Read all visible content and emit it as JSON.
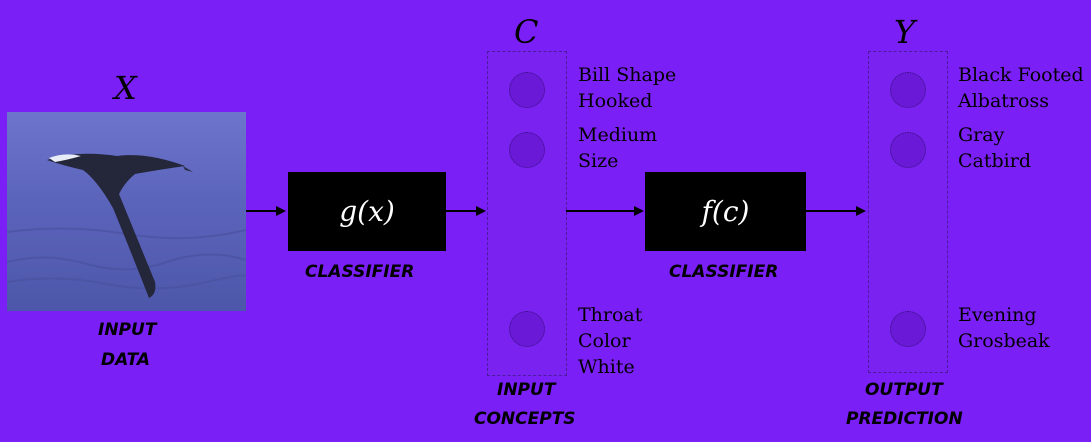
{
  "input": {
    "symbol": "X",
    "caption_line1": "INPUT",
    "caption_line2": "DATA"
  },
  "g_box": {
    "label": "g(x)",
    "caption": "CLASSIFIER"
  },
  "concepts": {
    "symbol": "C",
    "caption_line1": "INPUT",
    "caption_line2": "CONCEPTS",
    "items": [
      {
        "line1": "Bill Shape",
        "line2": "Hooked"
      },
      {
        "line1": "Medium",
        "line2": "Size"
      },
      {
        "line1": "Throat",
        "line2": "Color",
        "line3": "White"
      }
    ]
  },
  "f_box": {
    "label": "f(c)",
    "caption": "CLASSIFIER"
  },
  "output": {
    "symbol": "Y",
    "caption_line1": "OUTPUT",
    "caption_line2": "PREDICTION",
    "items": [
      {
        "line1": "Black Footed",
        "line2": "Albatross"
      },
      {
        "line1": "Gray",
        "line2": "Catbird"
      },
      {
        "line1": "Evening",
        "line2": "Grosbeak"
      }
    ]
  },
  "colors": {
    "background": "#7a1ff5",
    "box": "#000000",
    "node": "#6a1ad6"
  }
}
